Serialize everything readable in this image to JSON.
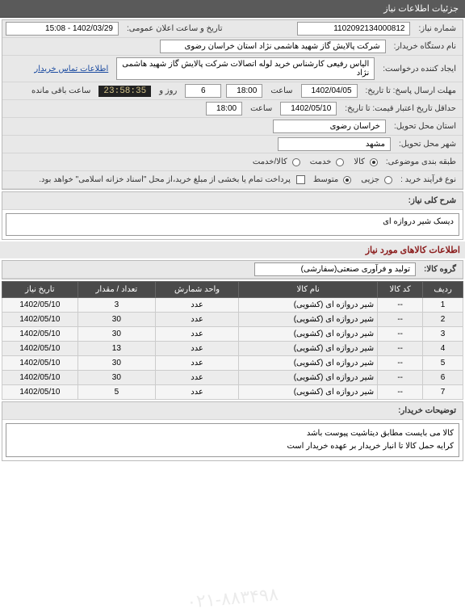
{
  "header": {
    "title": "جزئیات اطلاعات نیاز"
  },
  "info": {
    "need_number_label": "شماره نیاز:",
    "need_number": "1102092134000812",
    "announce_label": "تاریخ و ساعت اعلان عمومی:",
    "announce_value": "1402/03/29 - 15:08",
    "buyer_org_label": "نام دستگاه خریدار:",
    "buyer_org": "شرکت پالایش گاز شهید هاشمی نژاد   استان خراسان رضوی",
    "creator_label": "ایجاد کننده درخواست:",
    "creator": "الیاس رفیعی کارشناس خرید لوله اتصالات شرکت پالایش گاز شهید هاشمی نژاد",
    "contact_link": "اطلاعات تماس خریدار",
    "reply_deadline_label": "مهلت ارسال پاسخ: تا تاریخ:",
    "reply_date": "1402/04/05",
    "time_label": "ساعت",
    "reply_time": "18:00",
    "days_num": "6",
    "days_and_label": "روز و",
    "countdown": "23:58:35",
    "countdown_suffix": "ساعت باقی مانده",
    "min_valid_label": "حداقل تاریخ اعتبار قیمت: تا تاریخ:",
    "min_valid_date": "1402/05/10",
    "min_valid_time": "18:00",
    "delivery_province_label": "استان محل تحویل:",
    "delivery_province": "خراسان رضوی",
    "delivery_city_label": "شهر محل تحویل:",
    "delivery_city": "مشهد",
    "category_label": "طبقه بندی موضوعی:",
    "cat_goods": "کالا",
    "cat_service": "خدمت",
    "cat_goods_service": "کالا/خدمت",
    "purchase_type_label": "نوع فرآیند خرید :",
    "pt_small": "جزیی",
    "pt_medium": "متوسط",
    "pt_note": "پرداخت تمام یا بخشی از مبلغ خرید،از محل \"اسناد خزانه اسلامی\" خواهد بود.",
    "need_title_label": "شرح کلی نیاز:",
    "need_title": "دیسک شیر دروازه ای",
    "items_section_title": "اطلاعات کالاهای مورد نیاز",
    "goods_group_label": "گروه کالا:",
    "goods_group": "تولید و فرآوری صنعتی(سفارشی)",
    "buyer_notes_label": "توضیحات خریدار:",
    "buyer_notes_line1": "کالا می بایست مطابق دیتاشیت پیوست باشد",
    "buyer_notes_line2": "کرایه حمل کالا تا انبار خریدار بر عهده خریدار است"
  },
  "watermark": "۰۲۱-۸۸۳۴۹۸",
  "table": {
    "columns": {
      "row": "ردیف",
      "code": "کد کالا",
      "name": "نام کالا",
      "unit": "واحد شمارش",
      "qty": "تعداد / مقدار",
      "date": "تاریخ نیاز"
    },
    "rows": [
      {
        "n": "1",
        "code": "--",
        "name": "شیر دروازه ای (کشویی)",
        "unit": "عدد",
        "qty": "3",
        "date": "1402/05/10"
      },
      {
        "n": "2",
        "code": "--",
        "name": "شیر دروازه ای (کشویی)",
        "unit": "عدد",
        "qty": "30",
        "date": "1402/05/10"
      },
      {
        "n": "3",
        "code": "--",
        "name": "شیر دروازه ای (کشویی)",
        "unit": "عدد",
        "qty": "30",
        "date": "1402/05/10"
      },
      {
        "n": "4",
        "code": "--",
        "name": "شیر دروازه ای (کشویی)",
        "unit": "عدد",
        "qty": "13",
        "date": "1402/05/10"
      },
      {
        "n": "5",
        "code": "--",
        "name": "شیر دروازه ای (کشویی)",
        "unit": "عدد",
        "qty": "30",
        "date": "1402/05/10"
      },
      {
        "n": "6",
        "code": "--",
        "name": "شیر دروازه ای (کشویی)",
        "unit": "عدد",
        "qty": "30",
        "date": "1402/05/10"
      },
      {
        "n": "7",
        "code": "--",
        "name": "شیر دروازه ای (کشویی)",
        "unit": "عدد",
        "qty": "5",
        "date": "1402/05/10"
      }
    ]
  }
}
